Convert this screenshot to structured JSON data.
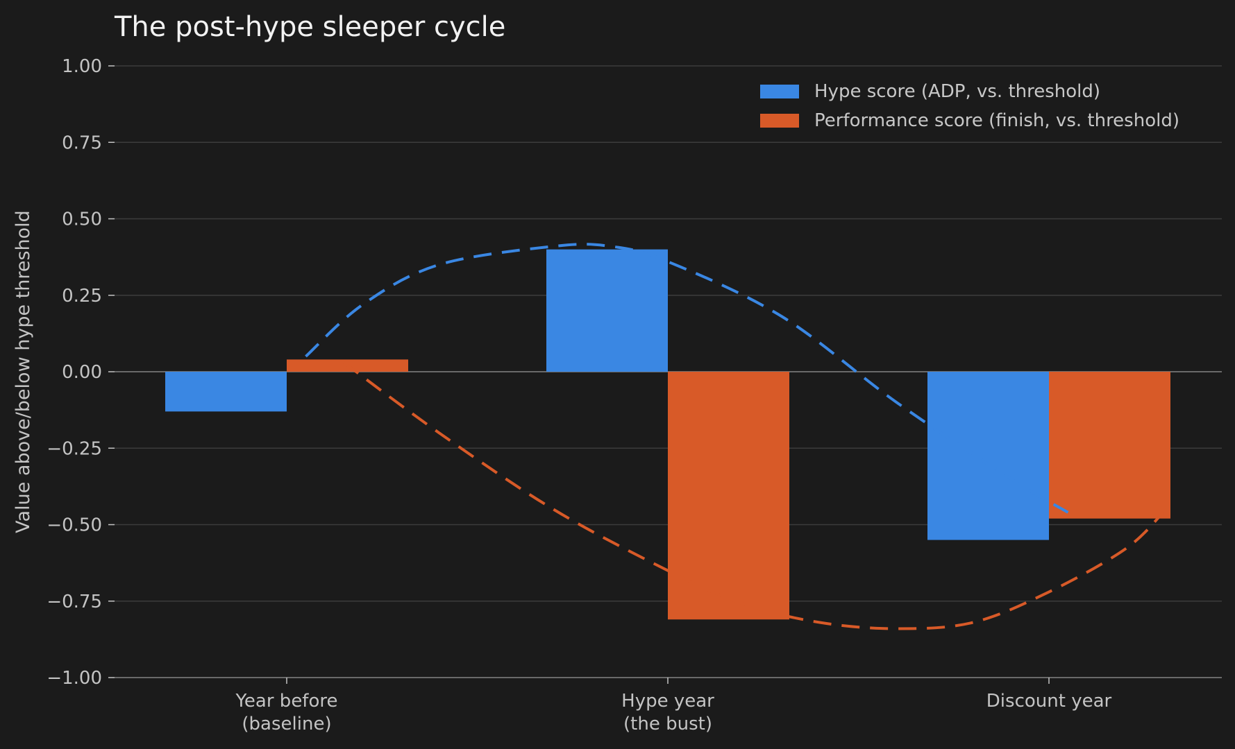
{
  "chart_data": {
    "type": "bar",
    "title": "The post-hype sleeper cycle",
    "xlabel": "",
    "ylabel": "Value above/below hype threshold",
    "categories": [
      "Year before\n(baseline)",
      "Hype year\n(the bust)",
      "Discount year"
    ],
    "series": [
      {
        "name": "Hype score (ADP, vs. threshold)",
        "values": [
          -0.13,
          0.4,
          -0.55
        ],
        "color": "#3a87e3"
      },
      {
        "name": "Performance score (finish, vs. threshold)",
        "values": [
          0.04,
          -0.81,
          -0.48
        ],
        "color": "#d85a28"
      }
    ],
    "trend_lines": [
      {
        "series": "Hype score (ADP, vs. threshold)",
        "style": "dashed",
        "color": "#3a87e3",
        "points": [
          [
            0.05,
            0.05
          ],
          [
            0.2,
            0.22
          ],
          [
            0.4,
            0.35
          ],
          [
            0.7,
            0.41
          ],
          [
            0.85,
            0.41
          ],
          [
            1.0,
            0.36
          ],
          [
            1.3,
            0.18
          ],
          [
            1.6,
            -0.1
          ],
          [
            1.9,
            -0.35
          ],
          [
            2.05,
            -0.46
          ]
        ]
      },
      {
        "series": "Performance score (finish, vs. threshold)",
        "style": "dashed",
        "color": "#d85a28",
        "points": [
          [
            0.15,
            0.03
          ],
          [
            0.4,
            -0.2
          ],
          [
            0.7,
            -0.45
          ],
          [
            1.0,
            -0.65
          ],
          [
            1.2,
            -0.76
          ],
          [
            1.4,
            -0.82
          ],
          [
            1.6,
            -0.84
          ],
          [
            1.8,
            -0.82
          ],
          [
            2.0,
            -0.72
          ],
          [
            2.2,
            -0.58
          ],
          [
            2.3,
            -0.46
          ]
        ]
      }
    ],
    "ylim": [
      -1.0,
      1.0
    ],
    "yticks": [
      "1.00",
      "0.75",
      "0.50",
      "0.25",
      "0.00",
      "−0.25",
      "−0.50",
      "−0.75",
      "−1.00"
    ],
    "ytick_values": [
      1.0,
      0.75,
      0.5,
      0.25,
      0.0,
      -0.25,
      -0.5,
      -0.75,
      -1.0
    ],
    "grid": true,
    "legend_position": "top-right"
  }
}
